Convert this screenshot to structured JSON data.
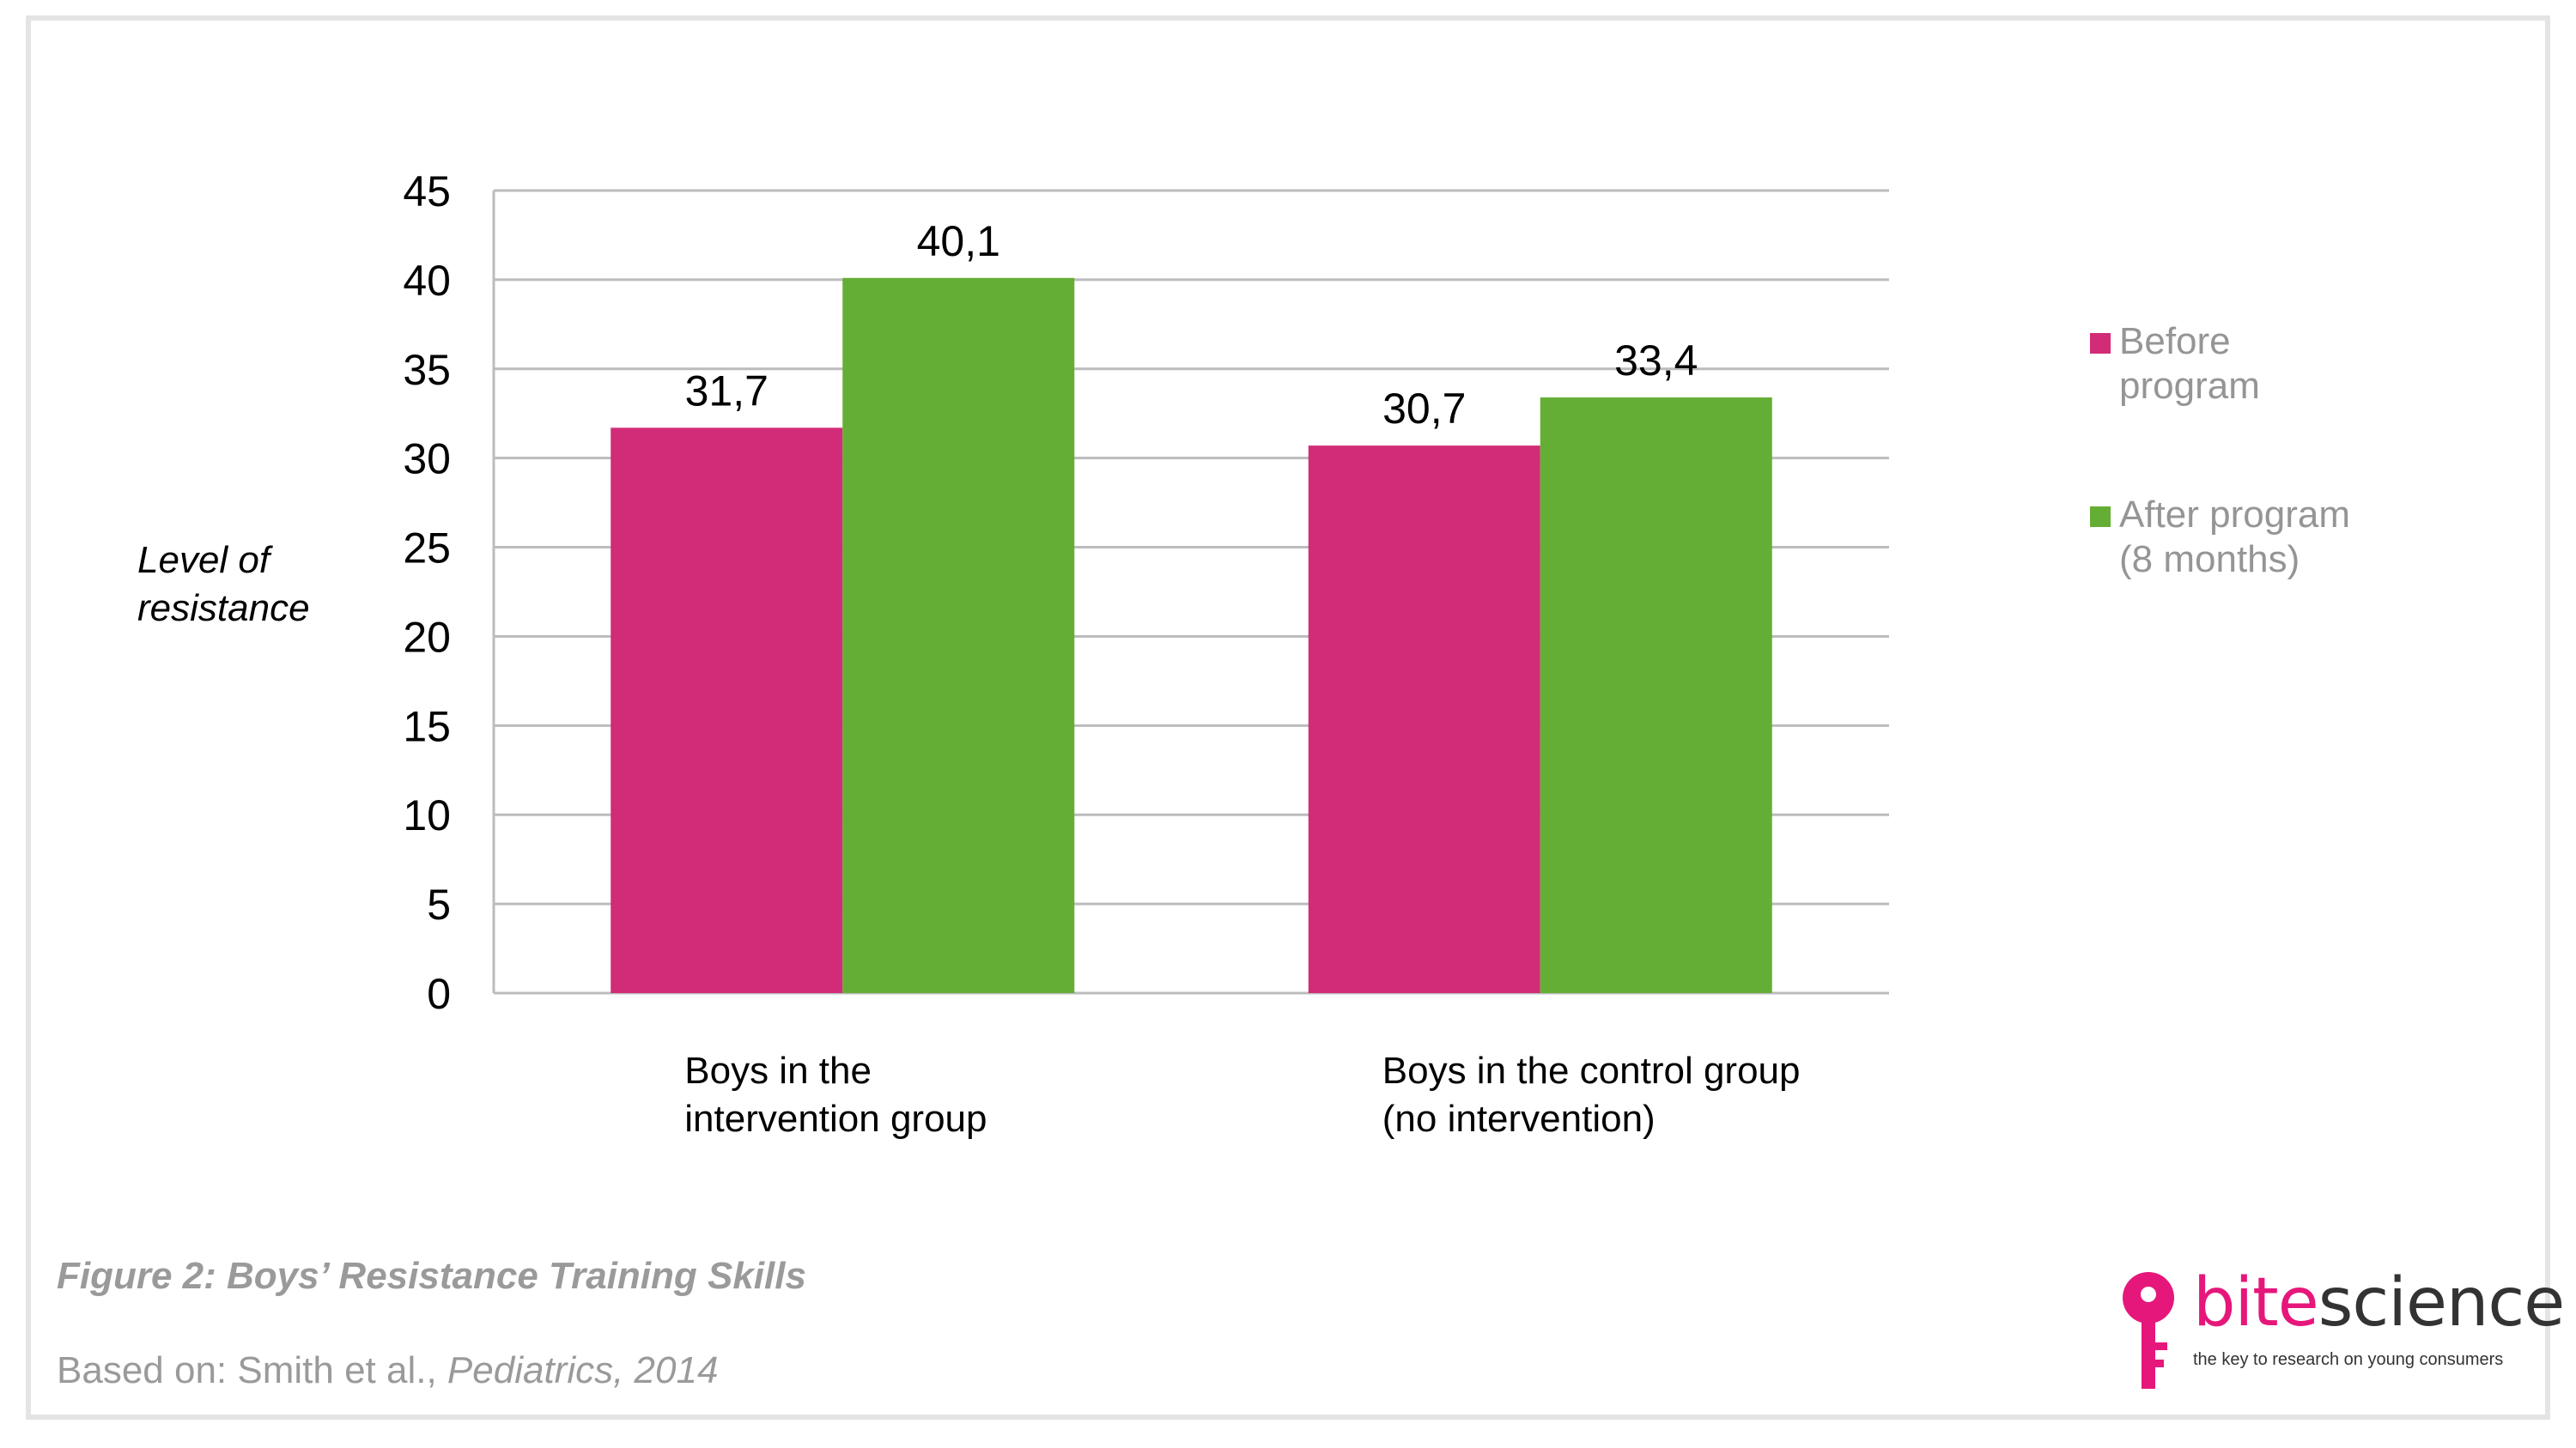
{
  "chart_data": {
    "type": "bar",
    "categories": [
      [
        "Boys in the",
        "intervention group"
      ],
      [
        "Boys in the control group",
        "(no intervention)"
      ]
    ],
    "series": [
      {
        "name": [
          "Before",
          "program"
        ],
        "color": "#d22b78",
        "values": [
          31.7,
          30.7
        ],
        "labels": [
          "31,7",
          "30,7"
        ]
      },
      {
        "name": [
          "After program",
          "(8 months)"
        ],
        "color": "#65ae35",
        "values": [
          40.1,
          33.4
        ],
        "labels": [
          "40,1",
          "33,4"
        ]
      }
    ],
    "ylabel": [
      "Level of",
      "resistance"
    ],
    "ylim": [
      0,
      45
    ],
    "yticks": [
      0,
      5,
      10,
      15,
      20,
      25,
      30,
      35,
      40,
      45
    ],
    "grid": true,
    "legend": "right"
  },
  "caption": {
    "title": "Figure 2: Boys’ Resistance Training Skills",
    "source_prefix": "Based on: Smith et al., ",
    "source_pub": "Pediatrics, 2014"
  },
  "logo": {
    "part1": "bite",
    "part2": "science",
    "tagline": "the key to research on young consumers",
    "part1_color": "#e6177a",
    "part2_color": "#333333"
  }
}
